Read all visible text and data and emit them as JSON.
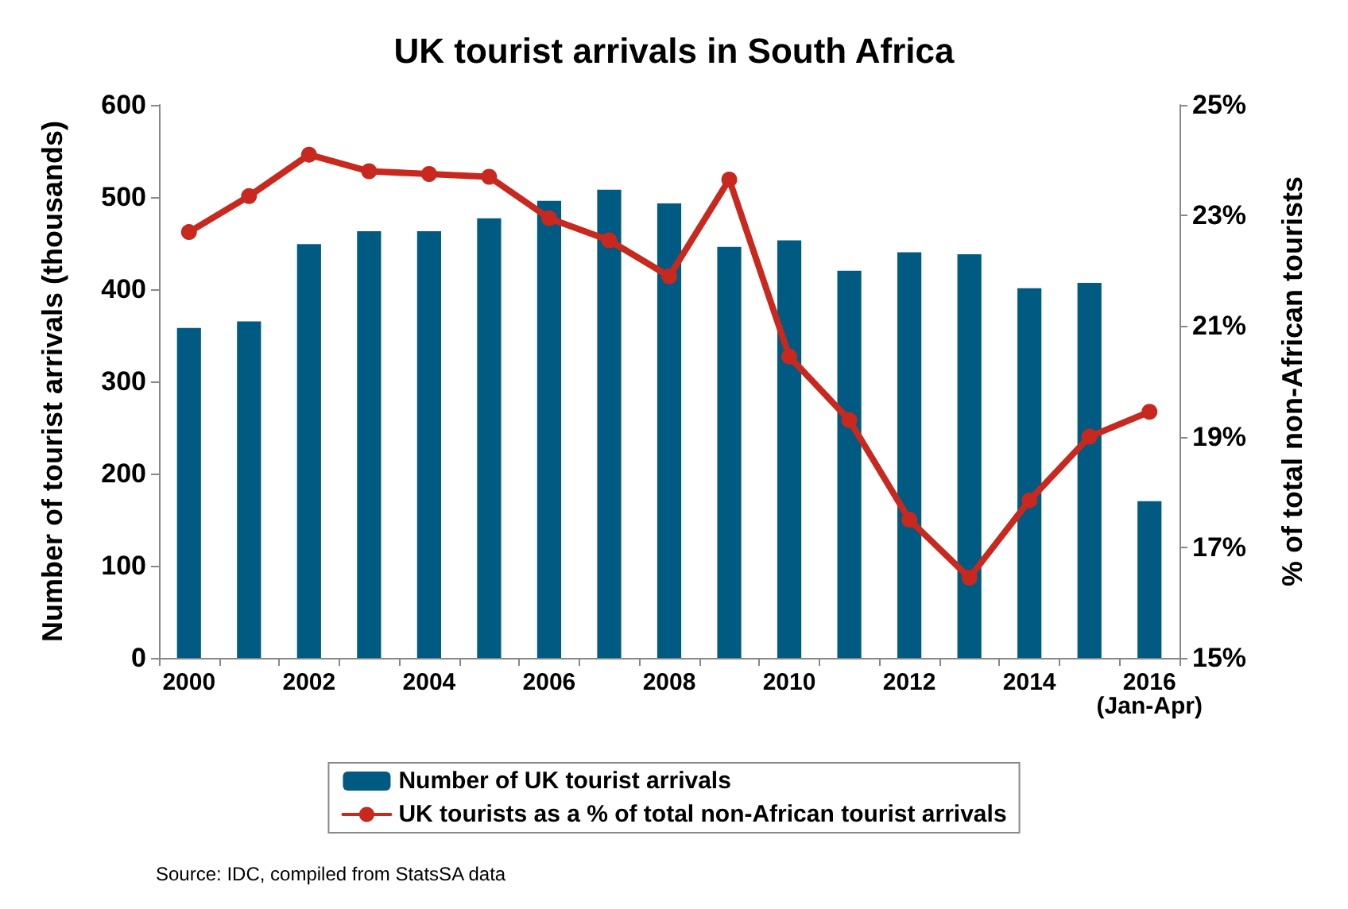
{
  "chart_data": {
    "type": "bar",
    "title": "UK tourist arrivals in South Africa",
    "categories": [
      "2000",
      null,
      "2002",
      null,
      "2004",
      null,
      "2006",
      null,
      "2008",
      null,
      "2010",
      null,
      "2012",
      null,
      "2014",
      null,
      "2016\n(Jan-Apr)"
    ],
    "series": [
      {
        "name": "Number of UK tourist arrivals",
        "color": "#005a82",
        "values": [
          358,
          365,
          449,
          463,
          463,
          477,
          496,
          508,
          493,
          446,
          453,
          420,
          440,
          438,
          401,
          407,
          170
        ]
      },
      {
        "name": "UK tourists as a % of total non-African tourist arrivals",
        "type": "line",
        "axis": "y2",
        "color": "#c8281e",
        "values": [
          22.7,
          23.35,
          24.1,
          23.8,
          23.75,
          23.7,
          22.95,
          22.55,
          21.9,
          23.65,
          20.45,
          19.3,
          17.5,
          16.45,
          17.85,
          19.0,
          19.45
        ]
      }
    ],
    "ylabel": "Number of tourist arrivals (thousands)",
    "y2label": "% of total non-African tourists",
    "ylim": [
      0,
      600
    ],
    "yticks": [
      0,
      100,
      200,
      300,
      400,
      500,
      600
    ],
    "y2lim": [
      15,
      25
    ],
    "y2ticks": [
      {
        "value": 15,
        "label": "15%"
      },
      {
        "value": 17,
        "label": "17%"
      },
      {
        "value": 19,
        "label": "19%"
      },
      {
        "value": 21,
        "label": "21%"
      },
      {
        "value": 23,
        "label": "23%"
      },
      {
        "value": 25,
        "label": "25%"
      }
    ],
    "annotations": [
      "Source: IDC, compiled from StatsSA data"
    ],
    "marker": "circle",
    "line_style": "solid",
    "grid": false,
    "legend": "bottom"
  }
}
